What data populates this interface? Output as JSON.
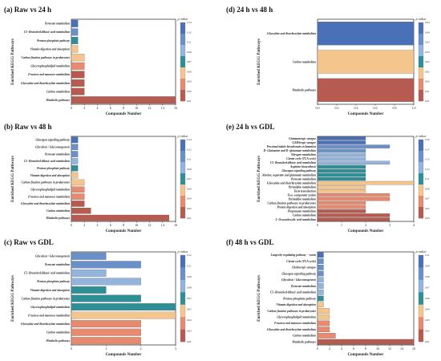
{
  "colors": {
    "scale": [
      "#4a71b8",
      "#6a90c9",
      "#92b4dd",
      "#2e8f97",
      "#f4c58c",
      "#e78a6f",
      "#b75a4f"
    ],
    "highlight_fill": "#ffd6ec",
    "border": "#000000"
  },
  "chart_data": [
    {
      "type": "bar",
      "orientation": "horizontal",
      "title": "(a) Raw vs 24 h",
      "xlabel": "Compounds Number",
      "ylabel": "Enriched KEGG Pathways",
      "xlim": [
        0,
        16
      ],
      "xticks": [
        0,
        2,
        4,
        6,
        8,
        10,
        12,
        14,
        16
      ],
      "colorbar": {
        "title": "p value",
        "range": [
          0.01,
          0.14
        ],
        "ticks": [
          "0.14",
          "0.12",
          "0.11",
          "0.09",
          "0.07",
          "0.06",
          "0.04",
          "0.02",
          "0.01"
        ]
      },
      "categories": [
        "Pyruvate metabolism",
        "C5−Branched dibasic acid metabolism",
        "Pentose phosphate pathway",
        "Vitamin digestion and absorption",
        "Carbon fixation pathways in prokaryotes",
        "Glycerophospholipid metabolism",
        "Fructose and mannose metabolism",
        "Glyoxylate and dicarboxylate metabolism",
        "Carbon metabolism",
        "Metabolic pathways"
      ],
      "values": [
        1,
        1,
        1,
        1,
        2,
        2,
        2,
        2,
        2,
        16
      ],
      "p_values": [
        0.13,
        0.12,
        0.08,
        0.05,
        0.05,
        0.03,
        0.02,
        0.02,
        0.01,
        0.01
      ]
    },
    {
      "type": "bar",
      "orientation": "horizontal",
      "title": "(b) Raw vs 48 h",
      "xlabel": "Compounds Number",
      "ylabel": "Enriched KEGG Pathways",
      "xlim": [
        0,
        16
      ],
      "xticks": [
        0,
        2,
        4,
        6,
        8,
        10,
        12,
        14,
        16
      ],
      "colorbar": {
        "title": "p value",
        "range": [
          0.01,
          0.14
        ],
        "ticks": [
          "0.14",
          "0.12",
          "0.11",
          "0.09",
          "0.07",
          "0.06",
          "0.04",
          "0.02",
          "0.01"
        ]
      },
      "categories": [
        "Glucagon signaling pathway",
        "Glycolysis / Gluconeogenesis",
        "Pyruvate metabolism",
        "C5−Branched dibasic acid metabolism",
        "Pentose phosphate pathway",
        "Vitamin digestion and absorption",
        "Carbon fixation pathways in prokaryotes",
        "Glycerophospholipid metabolism",
        "Fructose and mannose metabolism",
        "Glyoxylate and dicarboxylate metabolism",
        "Carbon metabolism",
        "Metabolic pathways"
      ],
      "values": [
        1,
        1,
        1,
        1,
        1,
        1,
        2,
        2,
        2,
        2,
        3,
        15
      ],
      "p_values": [
        0.13,
        0.12,
        0.11,
        0.09,
        0.07,
        0.06,
        0.05,
        0.03,
        0.03,
        0.02,
        0.02,
        0.01
      ]
    },
    {
      "type": "bar",
      "orientation": "horizontal",
      "title": "(c) Raw vs GDL",
      "xlabel": "Compounds Number",
      "ylabel": "Enriched KEGG Pathways",
      "xlim": [
        0,
        3
      ],
      "xticks": [
        0,
        1,
        2,
        3
      ],
      "colorbar": {
        "title": "p value",
        "range": [
          0.01,
          0.12
        ],
        "ticks": [
          "0.12",
          "0.11",
          "0.09",
          "0.08",
          "0.07",
          "0.05",
          "0.04",
          "0.03",
          "0.01"
        ]
      },
      "categories": [
        "Glycolysis / Gluconeogenesis",
        "Pyruvate metabolism",
        "C5−Branched dibasic acid metabolism",
        "Pentose phosphate pathway",
        "Vitamin digestion and absorption",
        "Carbon fixation pathways in prokaryotes",
        "Glycerophospholipid metabolism",
        "Fructose and mannose metabolism",
        "Glyoxylate and dicarboxylate metabolism",
        "Carbon metabolism",
        "Metabolic pathways"
      ],
      "values": [
        1,
        2,
        1,
        2,
        1,
        2,
        3,
        3,
        2,
        2,
        2
      ],
      "p_values": [
        0.11,
        0.1,
        0.09,
        0.09,
        0.07,
        0.06,
        0.06,
        0.05,
        0.03,
        0.03,
        0.02
      ]
    },
    {
      "type": "bar",
      "orientation": "horizontal",
      "title": "(d) 24 h vs 48 h",
      "xlabel": "Compounds Number",
      "ylabel": "Enriched KEGG Pathways",
      "xlim": [
        0,
        1.0
      ],
      "xticks": [
        "0.0",
        "0.2",
        "0.4",
        "0.6",
        "0.8",
        "1.0"
      ],
      "colorbar": {
        "title": "p value",
        "range": [
          0.01,
          0.04
        ],
        "ticks": [
          "0.04",
          "0.04",
          "0.03",
          "0.03",
          "0.02",
          "0.02",
          "0.02",
          "0.01",
          "0.01"
        ]
      },
      "categories": [
        "Glyoxylate and dicarboxylate metabolism",
        "Carbon metabolism",
        "Metabolic pathways"
      ],
      "values": [
        1,
        1,
        1
      ],
      "p_values": [
        0.04,
        0.02,
        0.01
      ]
    },
    {
      "type": "bar",
      "orientation": "horizontal",
      "title": "(e) 24 h vs GDL",
      "xlabel": "Compounds Number",
      "ylabel": "Enriched KEGG Pathways",
      "xlim": [
        0,
        4
      ],
      "xticks": [
        0,
        1,
        2,
        3,
        4
      ],
      "colorbar": {
        "title": "p value",
        "range": [
          0.03,
          0.19
        ],
        "ticks": [
          "0.19",
          "0.17",
          "0.15",
          "0.13",
          "0.11",
          "0.09",
          "0.07",
          "0.05",
          "0.03"
        ]
      },
      "categories": [
        "Glutamatergic synapse",
        "GABAergic synapse",
        "Proximal tubule bicarbonate reclamation",
        "D−Glutamine and D−glutamate metabolism",
        "Nitrogen metabolism",
        "Citrate cycle (TCA cycle)",
        "C5−Branched dibasic acid metabolism",
        "Arginine biosynthesis",
        "Glucagon signaling pathway",
        "Alanine, aspartate and glutamate metabolism",
        "Pyruvate metabolism",
        "Glyoxylate and dicarboxylate metabolism",
        "Pyrimidine metabolism",
        "Taste transduction",
        "Two−component system",
        "Pyrimidine metabolism",
        "Carbon fixation pathways in prokaryotes",
        "Protein digestion and absorption",
        "Propanoate metabolism",
        "Carbon metabolism",
        "2−Oxocarboxylic acid metabolism"
      ],
      "values": [
        2,
        2,
        3,
        2,
        2,
        2,
        3,
        2,
        2,
        2,
        2,
        4,
        2,
        2,
        3,
        3,
        2,
        2,
        2,
        3,
        3
      ],
      "p_values": [
        0.19,
        0.18,
        0.17,
        0.16,
        0.15,
        0.14,
        0.13,
        0.12,
        0.11,
        0.11,
        0.1,
        0.09,
        0.08,
        0.08,
        0.07,
        0.06,
        0.05,
        0.05,
        0.04,
        0.04,
        0.03
      ]
    },
    {
      "type": "bar",
      "orientation": "horizontal",
      "title": "(f) 48 h vs GDL",
      "xlabel": "Compounds Number",
      "ylabel": "Enriched KEGG Pathways",
      "xlim": [
        0,
        16
      ],
      "xticks": [
        0,
        2,
        4,
        6,
        8,
        10,
        12,
        14,
        16
      ],
      "colorbar": {
        "title": "p value",
        "range": [
          0.01,
          0.11
        ],
        "ticks": [
          "0.11",
          "0.09",
          "0.08",
          "0.07",
          "0.06",
          "0.04",
          "0.03",
          "0.02",
          "0.01"
        ]
      },
      "categories": [
        "Longevity regulating pathway − worm",
        "Citrate cycle (TCA cycle)",
        "Cholinergic synapse",
        "Glucagon signaling pathway",
        "Glycolysis / Gluconeogenesis",
        "Pyruvate metabolism",
        "C5−Branched dibasic acid metabolism",
        "Pentose phosphate pathway",
        "Vitamin digestion and absorption",
        "Carbon fixation pathways in prokaryotes",
        "Glycerophospholipid metabolism",
        "Fructose and mannose metabolism",
        "Glyoxylate and dicarboxylate metabolism",
        "Carbon metabolism",
        "Metabolic pathways"
      ],
      "values": [
        1,
        1,
        1,
        1,
        1,
        1,
        1,
        1,
        1,
        2,
        2,
        2,
        2,
        3,
        16
      ],
      "p_values": [
        0.11,
        0.1,
        0.1,
        0.09,
        0.08,
        0.07,
        0.07,
        0.06,
        0.05,
        0.05,
        0.04,
        0.03,
        0.03,
        0.02,
        0.01
      ]
    }
  ]
}
